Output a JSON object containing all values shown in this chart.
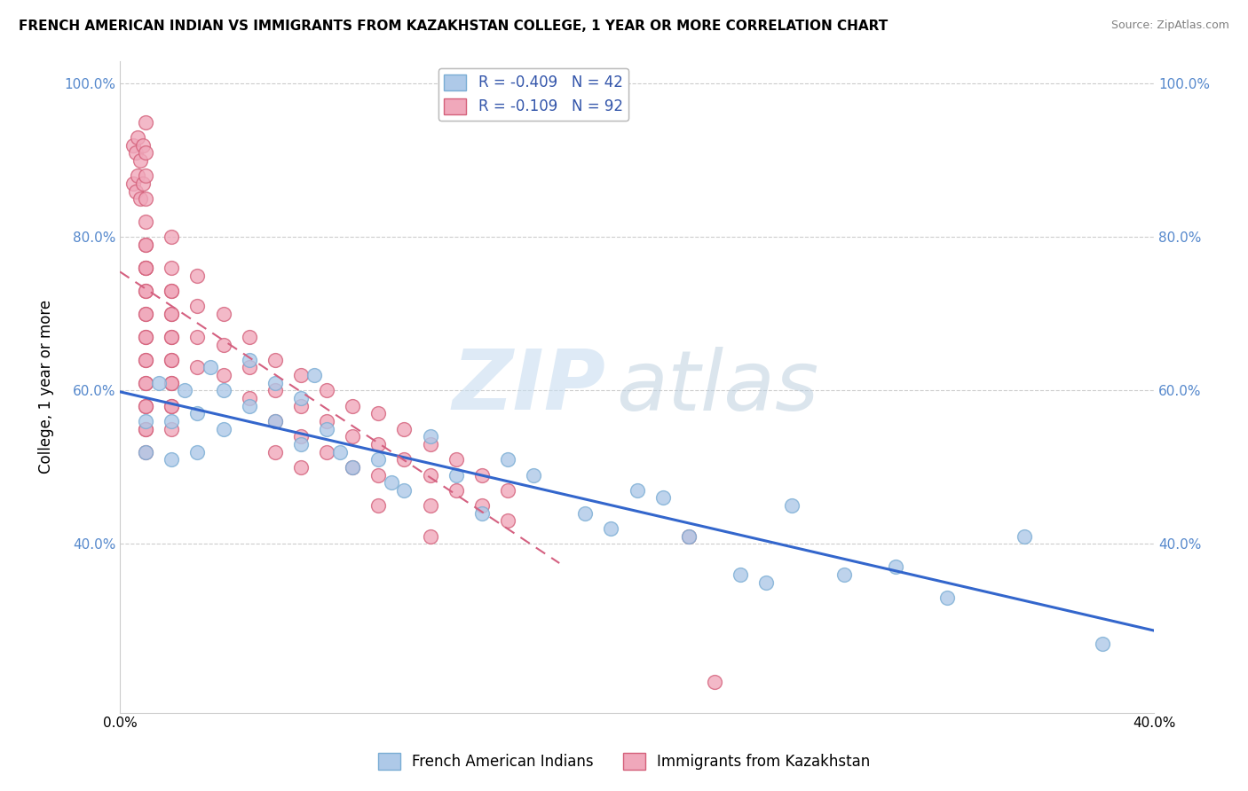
{
  "title": "FRENCH AMERICAN INDIAN VS IMMIGRANTS FROM KAZAKHSTAN COLLEGE, 1 YEAR OR MORE CORRELATION CHART",
  "source": "Source: ZipAtlas.com",
  "ylabel": "College, 1 year or more",
  "xlim": [
    0.0,
    0.4
  ],
  "ylim": [
    0.18,
    1.03
  ],
  "yticks": [
    0.4,
    0.6,
    0.8,
    1.0
  ],
  "ytick_labels": [
    "40.0%",
    "60.0%",
    "80.0%",
    "100.0%"
  ],
  "legend_blue_label": "R = -0.409   N = 42",
  "legend_pink_label": "R = -0.109   N = 92",
  "legend_bottom_blue": "French American Indians",
  "legend_bottom_pink": "Immigrants from Kazakhstan",
  "blue_color": "#aec9e8",
  "blue_edge": "#7aadd4",
  "pink_color": "#f0a8bb",
  "pink_edge": "#d4607a",
  "blue_line_color": "#3366cc",
  "pink_line_color": "#d46080",
  "watermark_zip": "ZIP",
  "watermark_atlas": "atlas",
  "blue_scatter_x": [
    0.01,
    0.01,
    0.015,
    0.02,
    0.02,
    0.025,
    0.03,
    0.03,
    0.035,
    0.04,
    0.04,
    0.05,
    0.05,
    0.06,
    0.06,
    0.07,
    0.07,
    0.075,
    0.08,
    0.085,
    0.09,
    0.1,
    0.105,
    0.11,
    0.12,
    0.13,
    0.14,
    0.15,
    0.16,
    0.18,
    0.19,
    0.2,
    0.21,
    0.22,
    0.24,
    0.25,
    0.26,
    0.28,
    0.3,
    0.32,
    0.35,
    0.38
  ],
  "blue_scatter_y": [
    0.56,
    0.52,
    0.61,
    0.56,
    0.51,
    0.6,
    0.57,
    0.52,
    0.63,
    0.6,
    0.55,
    0.64,
    0.58,
    0.61,
    0.56,
    0.59,
    0.53,
    0.62,
    0.55,
    0.52,
    0.5,
    0.51,
    0.48,
    0.47,
    0.54,
    0.49,
    0.44,
    0.51,
    0.49,
    0.44,
    0.42,
    0.47,
    0.46,
    0.41,
    0.36,
    0.35,
    0.45,
    0.36,
    0.37,
    0.33,
    0.41,
    0.27
  ],
  "pink_scatter_x": [
    0.005,
    0.005,
    0.006,
    0.006,
    0.007,
    0.007,
    0.008,
    0.008,
    0.009,
    0.009,
    0.01,
    0.01,
    0.01,
    0.01,
    0.01,
    0.01,
    0.01,
    0.01,
    0.01,
    0.01,
    0.01,
    0.01,
    0.01,
    0.01,
    0.01,
    0.01,
    0.01,
    0.01,
    0.01,
    0.01,
    0.01,
    0.01,
    0.01,
    0.01,
    0.01,
    0.02,
    0.02,
    0.02,
    0.02,
    0.02,
    0.02,
    0.02,
    0.02,
    0.02,
    0.02,
    0.02,
    0.02,
    0.02,
    0.02,
    0.02,
    0.03,
    0.03,
    0.03,
    0.03,
    0.04,
    0.04,
    0.04,
    0.05,
    0.05,
    0.05,
    0.06,
    0.06,
    0.06,
    0.06,
    0.07,
    0.07,
    0.07,
    0.07,
    0.08,
    0.08,
    0.08,
    0.09,
    0.09,
    0.09,
    0.1,
    0.1,
    0.1,
    0.1,
    0.11,
    0.11,
    0.12,
    0.12,
    0.12,
    0.12,
    0.13,
    0.13,
    0.14,
    0.14,
    0.15,
    0.15,
    0.22,
    0.23
  ],
  "pink_scatter_y": [
    0.92,
    0.87,
    0.91,
    0.86,
    0.93,
    0.88,
    0.9,
    0.85,
    0.92,
    0.87,
    0.95,
    0.91,
    0.88,
    0.85,
    0.82,
    0.79,
    0.76,
    0.73,
    0.7,
    0.67,
    0.64,
    0.61,
    0.58,
    0.55,
    0.52,
    0.79,
    0.76,
    0.73,
    0.7,
    0.67,
    0.64,
    0.61,
    0.58,
    0.55,
    0.76,
    0.8,
    0.76,
    0.73,
    0.7,
    0.67,
    0.64,
    0.61,
    0.58,
    0.73,
    0.7,
    0.67,
    0.64,
    0.61,
    0.58,
    0.55,
    0.75,
    0.71,
    0.67,
    0.63,
    0.7,
    0.66,
    0.62,
    0.67,
    0.63,
    0.59,
    0.64,
    0.6,
    0.56,
    0.52,
    0.62,
    0.58,
    0.54,
    0.5,
    0.6,
    0.56,
    0.52,
    0.58,
    0.54,
    0.5,
    0.57,
    0.53,
    0.49,
    0.45,
    0.55,
    0.51,
    0.53,
    0.49,
    0.45,
    0.41,
    0.51,
    0.47,
    0.49,
    0.45,
    0.47,
    0.43,
    0.41,
    0.22
  ]
}
